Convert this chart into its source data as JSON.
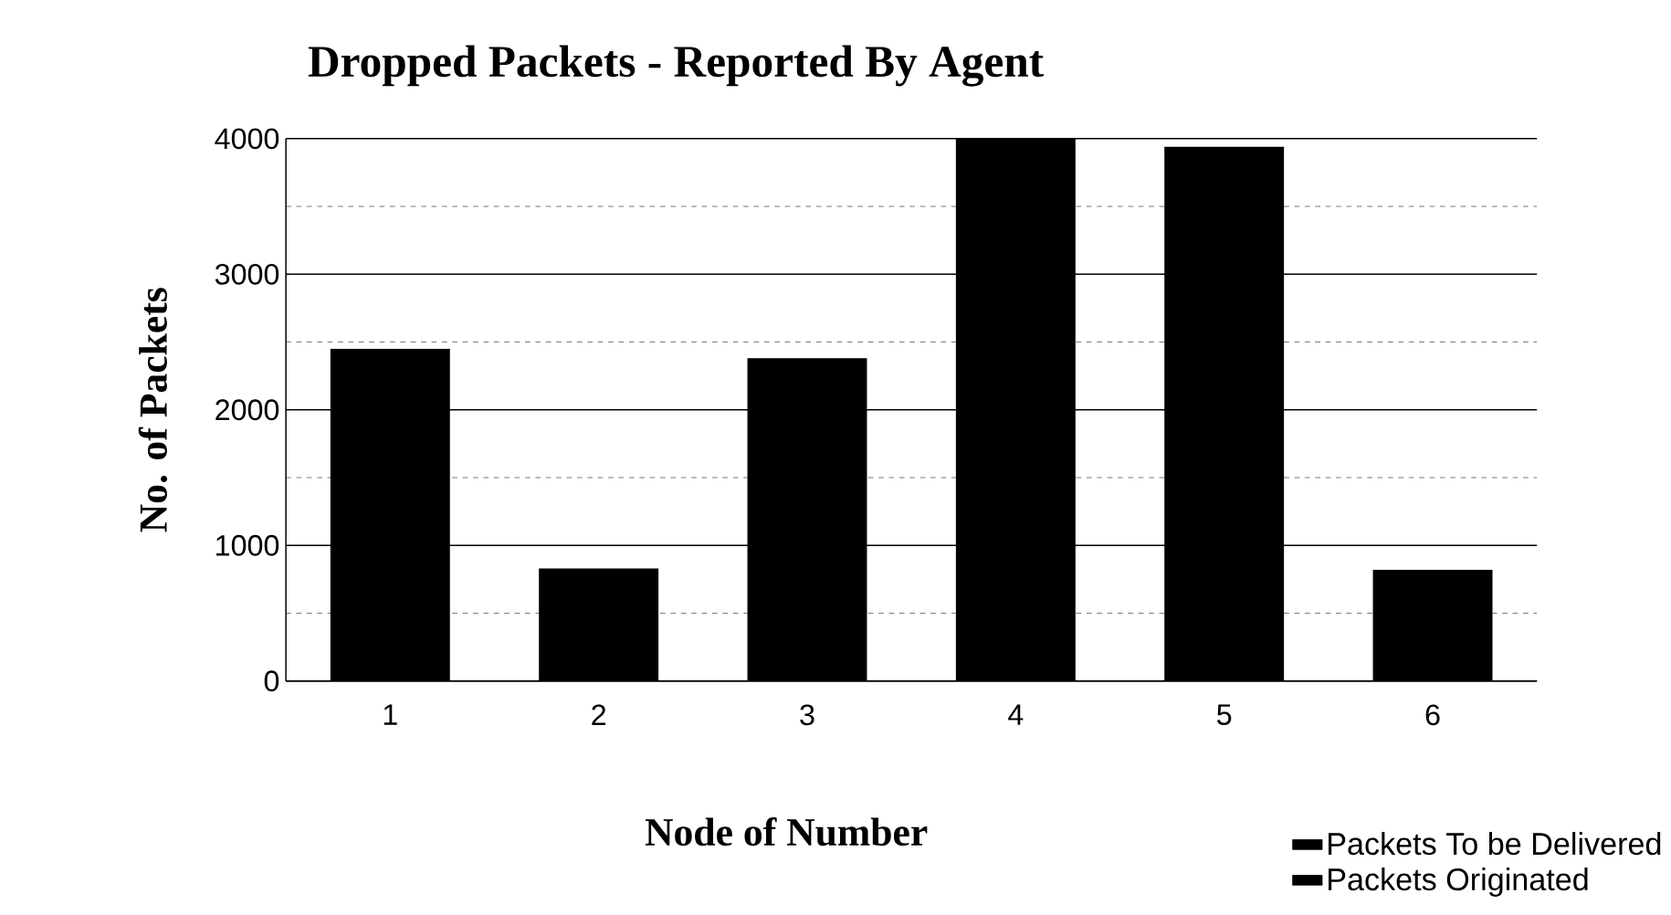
{
  "chart_data": {
    "type": "bar",
    "title": "Dropped Packets - Reported By Agent",
    "xlabel": "Node of Number",
    "ylabel": "No. of Packets",
    "categories": [
      "1",
      "2",
      "3",
      "4",
      "5",
      "6"
    ],
    "series": [
      {
        "name": "Packets To be Delivered",
        "color": "#000000",
        "values": [
          2450,
          830,
          2380,
          4000,
          3940,
          820
        ]
      },
      {
        "name": "Packets Originated",
        "color": "#000000",
        "values": [
          null,
          null,
          null,
          null,
          null,
          null
        ]
      }
    ],
    "ylim": [
      0,
      4000
    ],
    "yticks": [
      0,
      1000,
      2000,
      3000,
      4000
    ],
    "grid": "y",
    "legend": "bottom right"
  }
}
